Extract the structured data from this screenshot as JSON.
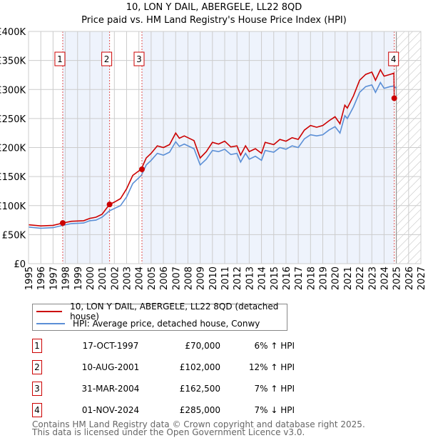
{
  "chart_data": {
    "type": "line",
    "title": "10, LON Y DAIL, ABERGELE, LL22 8QD",
    "subtitle": "Price paid vs. HM Land Registry's House Price Index (HPI)",
    "ylim": [
      0,
      400000
    ],
    "xlim": [
      1995,
      2027
    ],
    "y_ticks": [
      {
        "v": 0,
        "label": "£0"
      },
      {
        "v": 50000,
        "label": "£50K"
      },
      {
        "v": 100000,
        "label": "£100K"
      },
      {
        "v": 150000,
        "label": "£150K"
      },
      {
        "v": 200000,
        "label": "£200K"
      },
      {
        "v": 250000,
        "label": "£250K"
      },
      {
        "v": 300000,
        "label": "£300K"
      },
      {
        "v": 350000,
        "label": "£350K"
      },
      {
        "v": 400000,
        "label": "£400K"
      }
    ],
    "x_ticks": [
      "1995",
      "1996",
      "1997",
      "1998",
      "1999",
      "2000",
      "2001",
      "2002",
      "2003",
      "2004",
      "2005",
      "2006",
      "2007",
      "2008",
      "2009",
      "2010",
      "2011",
      "2012",
      "2013",
      "2014",
      "2015",
      "2016",
      "2017",
      "2018",
      "2019",
      "2020",
      "2021",
      "2022",
      "2023",
      "2024",
      "2025",
      "2026",
      "2027"
    ],
    "grid": true,
    "forecast_hatch_from": 2025,
    "series": [
      {
        "name": "10, LON Y DAIL, ABERGELE, LL22 8QD (detached house)",
        "color": "#cc0000",
        "x": [
          1995,
          1996,
          1997,
          1997.8,
          1998.5,
          1999.5,
          2000,
          2000.5,
          2001,
          2001.6,
          2002,
          2002.5,
          2003,
          2003.5,
          2004.2,
          2004.6,
          2005,
          2005.5,
          2006,
          2006.5,
          2007,
          2007.3,
          2007.7,
          2008.5,
          2009,
          2009.5,
          2010,
          2010.5,
          2011,
          2011.5,
          2012,
          2012.3,
          2012.7,
          2013,
          2013.5,
          2014,
          2014.3,
          2015,
          2015.5,
          2016,
          2016.5,
          2017,
          2017.5,
          2018,
          2018.5,
          2019,
          2019.5,
          2020,
          2020.4,
          2020.8,
          2021,
          2021.5,
          2022,
          2022.5,
          2023,
          2023.3,
          2023.7,
          2024,
          2024.5,
          2024.8,
          2024.83
        ],
        "y": [
          67000,
          65000,
          66000,
          70000,
          73000,
          74000,
          78000,
          80000,
          85000,
          102000,
          106000,
          112000,
          129000,
          152000,
          163000,
          182000,
          190000,
          203000,
          200000,
          205000,
          225000,
          216000,
          220000,
          212000,
          182000,
          193000,
          209000,
          206000,
          211000,
          201000,
          203000,
          187000,
          203000,
          193000,
          198000,
          190000,
          209000,
          205000,
          214000,
          211000,
          217000,
          214000,
          230000,
          238000,
          235000,
          238000,
          246000,
          253000,
          241000,
          273000,
          268000,
          289000,
          316000,
          326000,
          330000,
          316000,
          334000,
          323000,
          326000,
          328000,
          285000
        ]
      },
      {
        "name": "HPI: Average price, detached house, Conwy",
        "color": "#5b8fd6",
        "x": [
          1995,
          1996,
          1997,
          1997.8,
          1998.5,
          1999.5,
          2000,
          2000.5,
          2001,
          2001.6,
          2002,
          2002.5,
          2003,
          2003.5,
          2004.2,
          2004.6,
          2005,
          2005.5,
          2006,
          2006.5,
          2007,
          2007.3,
          2007.7,
          2008.5,
          2009,
          2009.5,
          2010,
          2010.5,
          2011,
          2011.5,
          2012,
          2012.3,
          2012.7,
          2013,
          2013.5,
          2014,
          2014.3,
          2015,
          2015.5,
          2016,
          2016.5,
          2017,
          2017.5,
          2018,
          2018.5,
          2019,
          2019.5,
          2020,
          2020.4,
          2020.8,
          2021,
          2021.5,
          2022,
          2022.5,
          2023,
          2023.3,
          2023.7,
          2024,
          2024.5,
          2024.8,
          2025
        ],
        "y": [
          63000,
          61000,
          62000,
          66000,
          69000,
          70000,
          74000,
          75000,
          80000,
          91000,
          95000,
          100000,
          115000,
          138000,
          152000,
          170000,
          178000,
          190000,
          187000,
          192000,
          210000,
          202000,
          206000,
          198000,
          170000,
          180000,
          195000,
          193000,
          197000,
          188000,
          190000,
          175000,
          190000,
          180000,
          185000,
          178000,
          195000,
          192000,
          200000,
          197000,
          203000,
          200000,
          215000,
          222000,
          220000,
          222000,
          230000,
          236000,
          225000,
          255000,
          250000,
          270000,
          295000,
          305000,
          308000,
          295000,
          312000,
          302000,
          305000,
          306000,
          302000
        ]
      }
    ],
    "sales": [
      {
        "n": "1",
        "date": "17-OCT-1997",
        "x": 1997.79,
        "price": 70000,
        "price_label": "£70,000",
        "hpi": "6% ↑ HPI"
      },
      {
        "n": "2",
        "date": "10-AUG-2001",
        "x": 2001.61,
        "price": 102000,
        "price_label": "£102,000",
        "hpi": "12% ↑ HPI"
      },
      {
        "n": "3",
        "date": "31-MAR-2004",
        "x": 2004.25,
        "price": 162500,
        "price_label": "£162,500",
        "hpi": "7% ↑ HPI"
      },
      {
        "n": "4",
        "date": "01-NOV-2024",
        "x": 2024.83,
        "price": 285000,
        "price_label": "£285,000",
        "hpi": "7% ↓ HPI"
      }
    ],
    "legend": {
      "position": "below",
      "items": [
        "10, LON Y DAIL, ABERGELE, LL22 8QD (detached house)",
        "HPI: Average price, detached house, Conwy"
      ]
    }
  },
  "footer": {
    "line1": "Contains HM Land Registry data © Crown copyright and database right 2025.",
    "line2": "This data is licensed under the Open Government Licence v3.0."
  }
}
